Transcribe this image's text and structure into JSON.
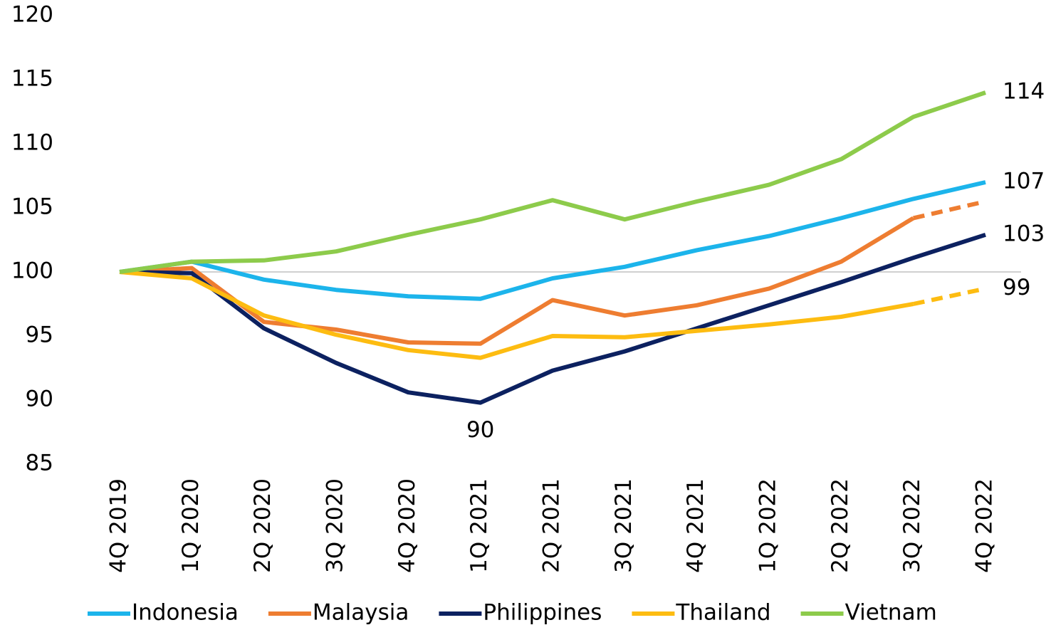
{
  "chart_data": {
    "type": "line",
    "categories": [
      "4Q 2019",
      "1Q 2020",
      "2Q 2020",
      "3Q 2020",
      "4Q 2020",
      "1Q 2021",
      "2Q 2021",
      "3Q 2021",
      "4Q 2021",
      "1Q 2022",
      "2Q 2022",
      "3Q 2022",
      "4Q 2022"
    ],
    "series": [
      {
        "name": "Indonesia",
        "color": "#1cb4eb",
        "values": [
          100,
          100.8,
          99.4,
          98.6,
          98.1,
          97.9,
          99.5,
          100.4,
          101.7,
          102.8,
          104.2,
          105.7,
          107.0
        ],
        "value_labels": [
          null,
          null,
          null,
          null,
          null,
          null,
          null,
          null,
          null,
          null,
          null,
          null,
          "107"
        ]
      },
      {
        "name": "Malaysia",
        "color": "#ee7d31",
        "values": [
          100,
          100.3,
          96.1,
          95.5,
          94.5,
          94.4,
          97.8,
          96.6,
          97.4,
          98.7,
          100.8,
          104.2,
          105.5
        ],
        "dashed_from": 11
      },
      {
        "name": "Philippines",
        "color": "#0c2160",
        "values": [
          100,
          99.9,
          95.6,
          92.9,
          90.6,
          89.8,
          92.3,
          93.8,
          95.6,
          97.4,
          99.2,
          101.1,
          102.9
        ],
        "value_labels": [
          null,
          null,
          null,
          null,
          null,
          "90",
          null,
          null,
          null,
          null,
          null,
          null,
          "103"
        ]
      },
      {
        "name": "Thailand",
        "color": "#fdbc11",
        "values": [
          100,
          99.5,
          96.6,
          95.1,
          93.9,
          93.3,
          95.0,
          94.9,
          95.4,
          95.9,
          96.5,
          97.5,
          98.7
        ],
        "dashed_from": 11,
        "value_labels": [
          null,
          null,
          null,
          null,
          null,
          null,
          null,
          null,
          null,
          null,
          null,
          null,
          "99"
        ]
      },
      {
        "name": "Vietnam",
        "color": "#8dcb4b",
        "values": [
          100,
          100.8,
          100.9,
          101.6,
          102.9,
          104.1,
          105.6,
          104.1,
          105.5,
          106.8,
          108.8,
          112.1,
          114.0
        ],
        "value_labels": [
          null,
          null,
          null,
          null,
          null,
          null,
          null,
          null,
          null,
          null,
          null,
          null,
          "114"
        ]
      }
    ],
    "ylim": [
      85,
      120
    ],
    "yticks": [
      85,
      90,
      95,
      100,
      105,
      110,
      115,
      120
    ],
    "hline": 100,
    "legend": "bottom"
  }
}
